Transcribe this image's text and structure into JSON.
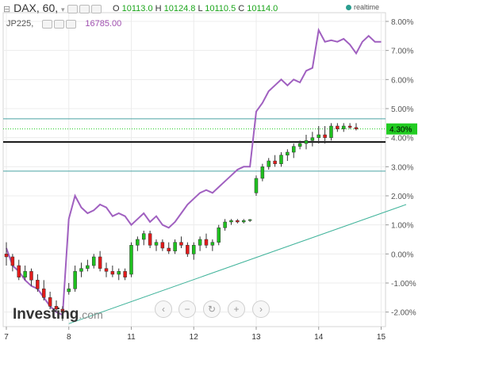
{
  "header": {
    "symbol": "DAX, 60,",
    "ohlc": [
      {
        "key": "O",
        "value": "10113.0"
      },
      {
        "key": "H",
        "value": "10124.8"
      },
      {
        "key": "L",
        "value": "10110.5"
      },
      {
        "key": "C",
        "value": "10114.0"
      }
    ],
    "compare_symbol": "JP225,",
    "compare_value": "16785.00",
    "realtime_label": "realtime",
    "logo_text": "Investing",
    "logo_domain": ".com"
  },
  "colors": {
    "up": "#1fc01f",
    "down": "#e21b1b",
    "compare_line": "#a060c0",
    "trend_line": "#3fb39a",
    "support_line": "#111111",
    "channel_line": "#4aa3a3",
    "current_label": "#22cc22"
  },
  "chart_data": {
    "type": "candlestick",
    "y_axis": {
      "unit": "%",
      "range": [
        -2.5,
        8.3
      ],
      "ticks": [
        "8.00%",
        "7.00%",
        "6.00%",
        "5.00%",
        "4.00%",
        "3.00%",
        "2.00%",
        "1.00%",
        "0.00%",
        "-1.00%",
        "-2.00%"
      ],
      "tick_values": [
        8,
        7,
        6,
        5,
        4,
        3,
        2,
        1,
        0,
        -1,
        -2
      ],
      "position": "right"
    },
    "x_axis": {
      "ticks": [
        "7",
        "8",
        "11",
        "12",
        "13",
        "14",
        "15"
      ],
      "tick_index": [
        0,
        10,
        20,
        30,
        40,
        50,
        60
      ]
    },
    "current_value_label": "4.30%",
    "current_value": 4.3,
    "candles": [
      [
        0.0,
        0.4,
        -0.4,
        -0.1
      ],
      [
        -0.1,
        0.0,
        -0.6,
        -0.4
      ],
      [
        -0.4,
        -0.2,
        -0.9,
        -0.8
      ],
      [
        -0.8,
        -0.4,
        -0.9,
        -0.6
      ],
      [
        -0.6,
        -0.5,
        -1.1,
        -0.9
      ],
      [
        -0.9,
        -0.7,
        -1.3,
        -1.2
      ],
      [
        -1.2,
        -0.9,
        -1.6,
        -1.5
      ],
      [
        -1.5,
        -1.3,
        -1.9,
        -1.8
      ],
      [
        -1.8,
        -1.6,
        -2.0,
        -1.9
      ],
      [
        -1.9,
        -1.8,
        -2.3,
        -2.0
      ],
      [
        -1.3,
        -1.0,
        -1.4,
        -1.2
      ],
      [
        -1.2,
        -0.4,
        -1.3,
        -0.6
      ],
      [
        -0.6,
        -0.3,
        -0.8,
        -0.5
      ],
      [
        -0.5,
        -0.2,
        -0.6,
        -0.4
      ],
      [
        -0.4,
        0.0,
        -0.5,
        -0.1
      ],
      [
        -0.1,
        0.1,
        -0.6,
        -0.5
      ],
      [
        -0.5,
        -0.3,
        -0.8,
        -0.6
      ],
      [
        -0.6,
        -0.4,
        -0.8,
        -0.7
      ],
      [
        -0.7,
        -0.5,
        -0.9,
        -0.6
      ],
      [
        -0.6,
        -0.5,
        -0.9,
        -0.8
      ],
      [
        -0.7,
        0.4,
        -0.8,
        0.3
      ],
      [
        0.3,
        0.6,
        0.1,
        0.5
      ],
      [
        0.5,
        0.8,
        0.3,
        0.7
      ],
      [
        0.7,
        0.8,
        0.2,
        0.3
      ],
      [
        0.3,
        0.5,
        0.1,
        0.4
      ],
      [
        0.4,
        0.5,
        0.1,
        0.2
      ],
      [
        0.2,
        0.4,
        0.0,
        0.1
      ],
      [
        0.1,
        0.5,
        0.0,
        0.4
      ],
      [
        0.4,
        0.6,
        0.2,
        0.3
      ],
      [
        0.3,
        0.4,
        -0.1,
        0.0
      ],
      [
        0.0,
        0.4,
        -0.2,
        0.3
      ],
      [
        0.3,
        0.6,
        0.1,
        0.5
      ],
      [
        0.5,
        0.7,
        0.2,
        0.3
      ],
      [
        0.3,
        0.5,
        0.1,
        0.4
      ],
      [
        0.4,
        1.0,
        0.3,
        0.9
      ],
      [
        0.9,
        1.2,
        0.8,
        1.1
      ],
      [
        1.1,
        1.2,
        1.0,
        1.15
      ],
      [
        1.15,
        1.2,
        1.05,
        1.1
      ],
      [
        1.1,
        1.2,
        1.05,
        1.15
      ],
      [
        1.15,
        1.2,
        1.1,
        1.18
      ],
      [
        2.1,
        2.7,
        2.0,
        2.6
      ],
      [
        2.6,
        3.1,
        2.5,
        3.0
      ],
      [
        3.0,
        3.3,
        2.9,
        3.2
      ],
      [
        3.2,
        3.4,
        3.0,
        3.1
      ],
      [
        3.1,
        3.5,
        3.0,
        3.4
      ],
      [
        3.4,
        3.6,
        3.2,
        3.5
      ],
      [
        3.5,
        3.8,
        3.3,
        3.7
      ],
      [
        3.7,
        3.9,
        3.6,
        3.8
      ],
      [
        3.8,
        4.1,
        3.6,
        3.9
      ],
      [
        3.9,
        4.2,
        3.7,
        4.0
      ],
      [
        4.0,
        4.4,
        3.8,
        4.1
      ],
      [
        4.1,
        4.4,
        3.8,
        4.0
      ],
      [
        4.0,
        4.5,
        3.9,
        4.4
      ],
      [
        4.4,
        4.5,
        4.2,
        4.3
      ],
      [
        4.3,
        4.5,
        4.2,
        4.4
      ],
      [
        4.4,
        4.5,
        4.3,
        4.35
      ],
      [
        4.35,
        4.5,
        4.25,
        4.3
      ]
    ],
    "compare_series": [
      [
        0,
        0.2
      ],
      [
        1,
        -0.4
      ],
      [
        2,
        -0.6
      ],
      [
        3,
        -0.9
      ],
      [
        4,
        -1.1
      ],
      [
        5,
        -1.2
      ],
      [
        6,
        -1.5
      ],
      [
        7,
        -1.8
      ],
      [
        8,
        -2.0
      ],
      [
        9,
        -2.1
      ],
      [
        10,
        1.2
      ],
      [
        11,
        2.0
      ],
      [
        12,
        1.6
      ],
      [
        13,
        1.4
      ],
      [
        14,
        1.5
      ],
      [
        15,
        1.7
      ],
      [
        16,
        1.6
      ],
      [
        17,
        1.3
      ],
      [
        18,
        1.4
      ],
      [
        19,
        1.3
      ],
      [
        20,
        1.0
      ],
      [
        21,
        1.2
      ],
      [
        22,
        1.4
      ],
      [
        23,
        1.1
      ],
      [
        24,
        1.3
      ],
      [
        25,
        1.0
      ],
      [
        26,
        0.9
      ],
      [
        27,
        1.1
      ],
      [
        28,
        1.4
      ],
      [
        29,
        1.7
      ],
      [
        30,
        1.9
      ],
      [
        31,
        2.1
      ],
      [
        32,
        2.2
      ],
      [
        33,
        2.1
      ],
      [
        34,
        2.3
      ],
      [
        35,
        2.5
      ],
      [
        36,
        2.7
      ],
      [
        37,
        2.9
      ],
      [
        38,
        3.0
      ],
      [
        39,
        3.0
      ],
      [
        40,
        4.9
      ],
      [
        41,
        5.2
      ],
      [
        42,
        5.6
      ],
      [
        43,
        5.8
      ],
      [
        44,
        6.0
      ],
      [
        45,
        5.8
      ],
      [
        46,
        6.0
      ],
      [
        47,
        5.9
      ],
      [
        48,
        6.3
      ],
      [
        49,
        6.4
      ],
      [
        50,
        7.7
      ],
      [
        51,
        7.3
      ],
      [
        52,
        7.35
      ],
      [
        53,
        7.3
      ],
      [
        54,
        7.4
      ],
      [
        55,
        7.2
      ],
      [
        56,
        6.9
      ],
      [
        57,
        7.3
      ],
      [
        58,
        7.5
      ],
      [
        59,
        7.3
      ],
      [
        60,
        7.3
      ]
    ],
    "trend_line": {
      "from": [
        10,
        -2.4
      ],
      "to": [
        64,
        1.7
      ]
    },
    "support_line": 3.85,
    "channel_lines": [
      4.65,
      2.85
    ],
    "dotted_line": 4.3
  },
  "nav_buttons": [
    {
      "name": "scroll-left-button",
      "glyph": "‹"
    },
    {
      "name": "zoom-out-button",
      "glyph": "−"
    },
    {
      "name": "reset-button",
      "glyph": "↻"
    },
    {
      "name": "zoom-in-button",
      "glyph": "+"
    },
    {
      "name": "scroll-right-button",
      "glyph": "›"
    }
  ]
}
